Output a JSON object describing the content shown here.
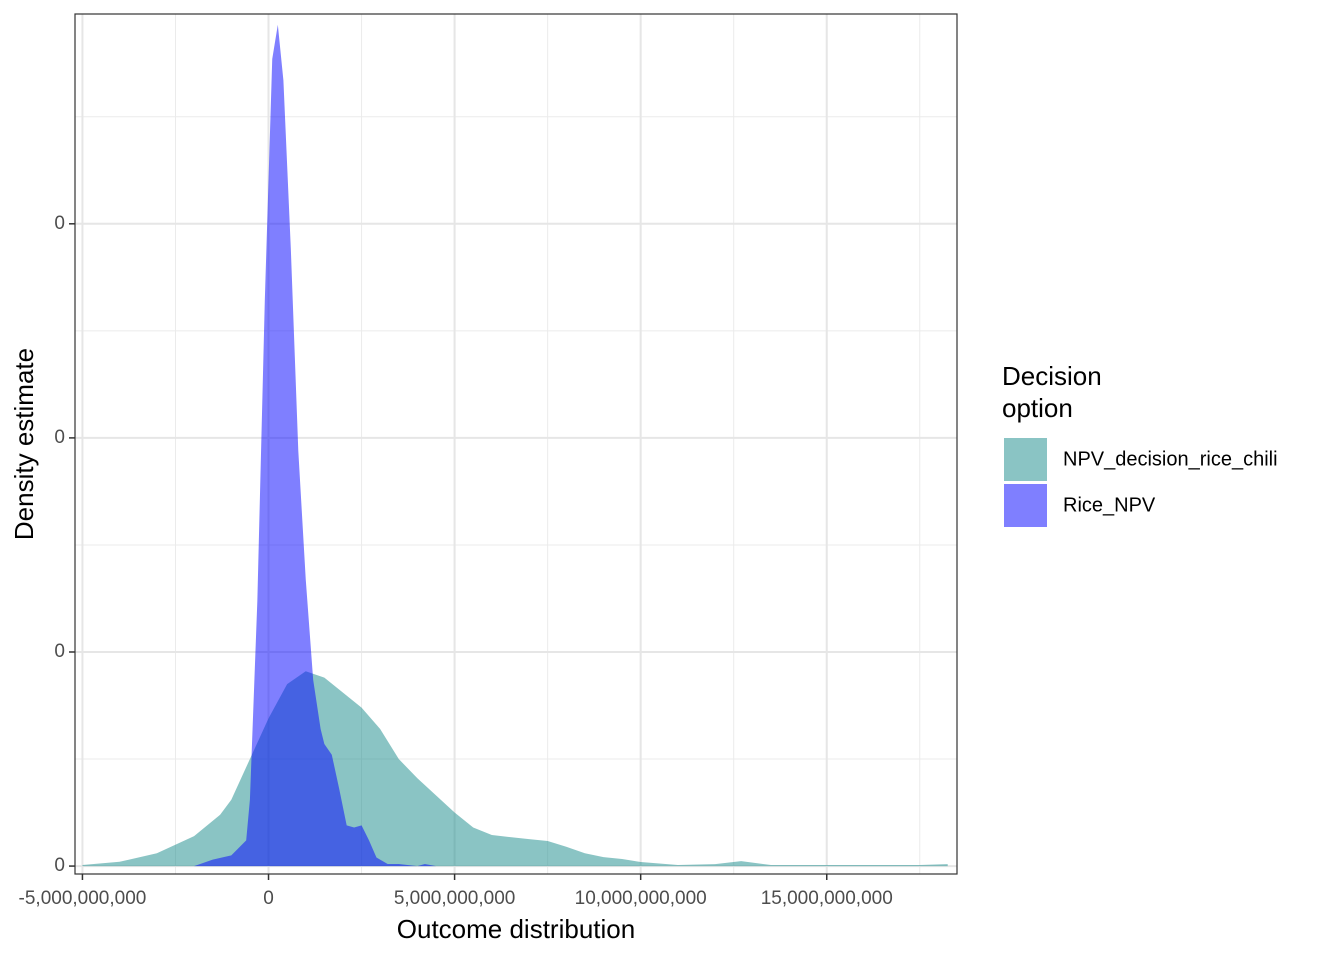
{
  "chart_data": {
    "type": "density",
    "x_label": "Outcome distribution",
    "y_label": "Density estimate",
    "legend_title": [
      "Decision",
      "option"
    ],
    "xlim": [
      -5200000000,
      18500000000
    ],
    "xticks": [
      {
        "value": -5000000000,
        "label": "-5,000,000,000"
      },
      0,
      {
        "value": 5000000000,
        "label": "5,000,000,000"
      },
      {
        "value": 10000000000,
        "label": "10,000,000,000"
      },
      {
        "value": 15000000000,
        "label": "15,000,000,000"
      }
    ],
    "ylim": [
      -3.7e-12,
      3.98e-10
    ],
    "yticks": [
      {
        "value": 0,
        "label": "0"
      },
      {
        "value": 1e-10,
        "label": "0"
      },
      {
        "value": 2e-10,
        "label": "0"
      },
      {
        "value": 3e-10,
        "label": "0"
      }
    ],
    "grid": true,
    "series": [
      {
        "name": "NPV_decision_rice_chili",
        "color": "#158989",
        "x": [
          -5000000000,
          -4000000000,
          -3000000000,
          -2000000000,
          -1300000000,
          -1000000000,
          -500000000,
          0,
          500000000,
          1000000000,
          1500000000,
          2000000000,
          2500000000,
          3000000000,
          3500000000,
          4000000000,
          4500000000,
          5000000000,
          5500000000,
          6000000000,
          6500000000,
          7000000000,
          7500000000,
          8000000000,
          8500000000,
          9000000000,
          9500000000,
          10000000000,
          11000000000,
          12000000000,
          12700000000,
          13500000000,
          15000000000,
          17500000000,
          18250000000
        ],
        "values": [
          5e-13,
          2e-12,
          6e-12,
          1.4e-11,
          2.4e-11,
          3.1e-11,
          5e-11,
          6.9e-11,
          8.5e-11,
          9.1e-11,
          8.8e-11,
          8.1e-11,
          7.4e-11,
          6.4e-11,
          5e-11,
          4.1e-11,
          3.3e-11,
          2.5e-11,
          1.8e-11,
          1.45e-11,
          1.35e-11,
          1.26e-11,
          1.17e-11,
          9e-12,
          6e-12,
          4.2e-12,
          3.3e-12,
          1.9e-12,
          5e-13,
          9e-13,
          2.3e-12,
          5e-13,
          5e-13,
          5e-13,
          9e-13
        ]
      },
      {
        "name": "Rice_NPV",
        "color": "#0000ff",
        "x": [
          -2000000000,
          -1500000000,
          -1000000000,
          -600000000,
          -500000000,
          -300000000,
          -100000000,
          100000000,
          250000000,
          400000000,
          600000000,
          800000000,
          1000000000,
          1200000000,
          1400000000,
          1500000000,
          1700000000,
          1900000000,
          2100000000,
          2300000000,
          2500000000,
          2700000000,
          2900000000,
          3200000000,
          3500000000,
          4000000000,
          4200000000,
          4500000000
        ],
        "values": [
          0,
          3e-12,
          5e-12,
          1.2e-11,
          3.1e-11,
          1.24e-10,
          2.64e-10,
          3.77e-10,
          3.93e-10,
          3.67e-10,
          2.88e-10,
          1.94e-10,
          1.34e-10,
          8.7e-11,
          6.4e-11,
          5.7e-11,
          5.2e-11,
          3.6e-11,
          1.9e-11,
          1.8e-11,
          1.9e-11,
          1.2e-11,
          4e-12,
          1e-12,
          1e-12,
          0,
          1e-12,
          0
        ]
      }
    ]
  }
}
